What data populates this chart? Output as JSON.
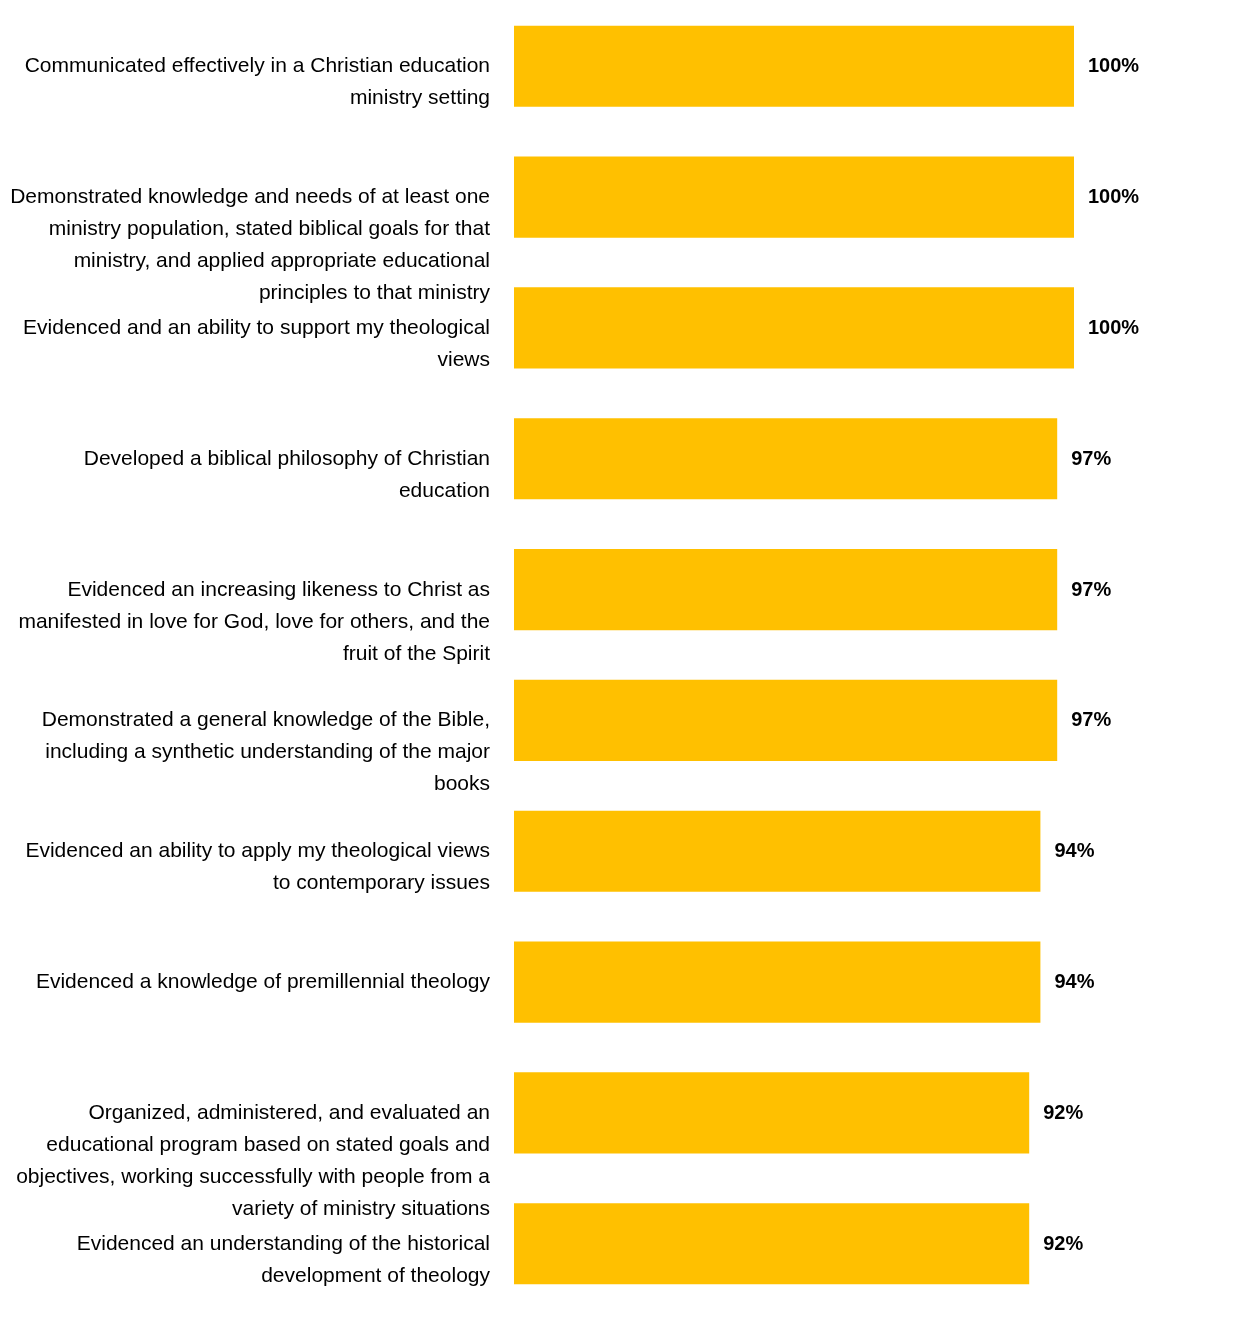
{
  "chart_data": {
    "type": "bar",
    "orientation": "horizontal",
    "color": "#ffc000",
    "categories": [
      "Communicated effectively in a Christian education ministry setting",
      "Demonstrated knowledge and needs of at least one ministry population, stated biblical goals for that ministry, and applied appropriate educational principles to that ministry",
      "Evidenced and an ability to support my theological views",
      "Developed a biblical philosophy of Christian education",
      "Evidenced an increasing likeness to Christ as manifested in love for God, love for others, and the fruit of the Spirit",
      "Demonstrated a general knowledge of the Bible, including a synthetic understanding of the major books",
      "Evidenced an ability to apply my theological views to contemporary issues",
      "Evidenced a knowledge of premillennial theology",
      "Organized, administered, and evaluated an educational program based on stated goals and objectives, working successfully with people from a variety of ministry situations",
      "Evidenced an understanding of the historical development of theology"
    ],
    "values": [
      100,
      100,
      100,
      97,
      97,
      97,
      94,
      94,
      92,
      92
    ],
    "value_labels": [
      "100%",
      "100%",
      "100%",
      "97%",
      "97%",
      "97%",
      "94%",
      "94%",
      "92%",
      "92%"
    ]
  }
}
